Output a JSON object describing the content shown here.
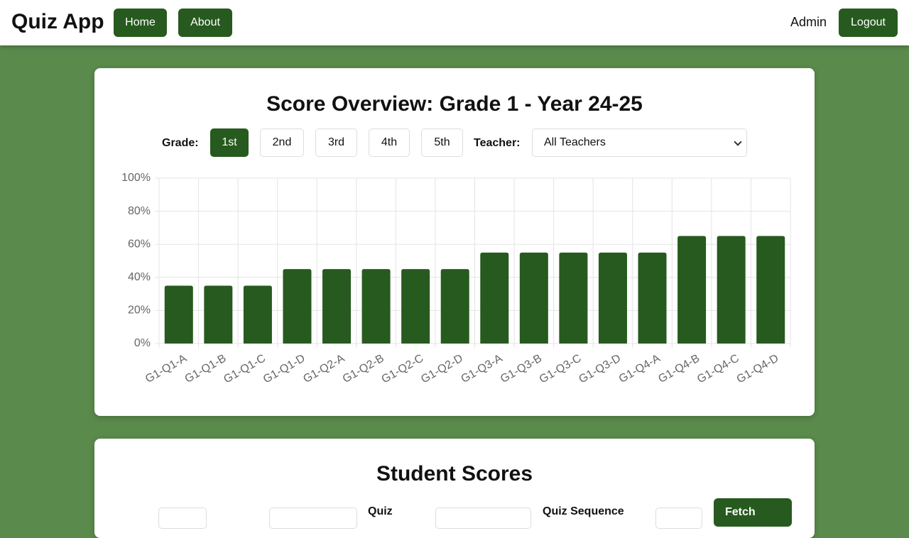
{
  "nav": {
    "brand": "Quiz App",
    "links": [
      "Home",
      "About"
    ],
    "user": "Admin",
    "logout": "Logout"
  },
  "overview": {
    "title": "Score Overview: Grade 1 - Year 24-25",
    "grade_label": "Grade:",
    "grades": [
      "1st",
      "2nd",
      "3rd",
      "4th",
      "5th"
    ],
    "active_grade": 0,
    "teacher_label": "Teacher:",
    "teacher_selected": "All Teachers"
  },
  "chart_data": {
    "type": "bar",
    "categories": [
      "G1-Q1-A",
      "G1-Q1-B",
      "G1-Q1-C",
      "G1-Q1-D",
      "G1-Q2-A",
      "G1-Q2-B",
      "G1-Q2-C",
      "G1-Q2-D",
      "G1-Q3-A",
      "G1-Q3-B",
      "G1-Q3-C",
      "G1-Q3-D",
      "G1-Q4-A",
      "G1-Q4-B",
      "G1-Q4-C",
      "G1-Q4-D"
    ],
    "values": [
      35,
      35,
      35,
      45,
      45,
      45,
      45,
      45,
      55,
      55,
      55,
      55,
      55,
      65,
      65,
      65
    ],
    "color": "#275a1e",
    "ylim": [
      0,
      100
    ],
    "yticks": [
      {
        "value": 0,
        "label": "0%"
      },
      {
        "value": 20,
        "label": "20%"
      },
      {
        "value": 40,
        "label": "40%"
      },
      {
        "value": 60,
        "label": "60%"
      },
      {
        "value": 80,
        "label": "80%"
      },
      {
        "value": 100,
        "label": "100%"
      }
    ],
    "grid": true
  },
  "scores": {
    "title": "Student Scores",
    "quiz_label": "Quiz",
    "sequence_label": "Quiz Sequence",
    "fetch": "Fetch"
  }
}
